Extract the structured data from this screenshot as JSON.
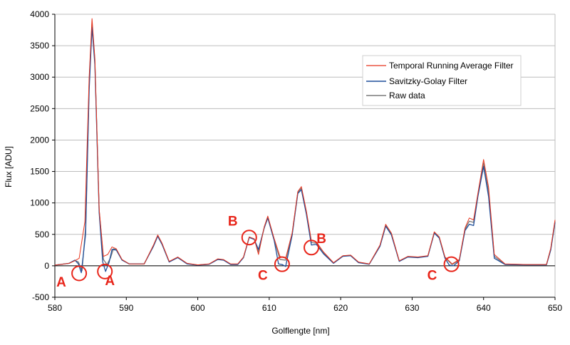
{
  "chart_data": {
    "type": "line",
    "title": "",
    "xlabel": "Golflengte [nm]",
    "ylabel": "Flux [ADU]",
    "xlim": [
      580,
      650
    ],
    "ylim": [
      -500,
      4000
    ],
    "xticks": [
      580,
      590,
      600,
      610,
      620,
      630,
      640,
      650
    ],
    "yticks": [
      -500,
      0,
      500,
      1000,
      1500,
      2000,
      2500,
      3000,
      3500,
      4000
    ],
    "xtick_labels": [
      "580",
      "590",
      "600",
      "610",
      "620",
      "630",
      "640",
      "650"
    ],
    "ytick_labels": [
      "-500",
      "0",
      "500",
      "1000",
      "1500",
      "2000",
      "2500",
      "3000",
      "3500",
      "4000"
    ],
    "grid": "horizontal",
    "legend_position": "right",
    "series": [
      {
        "name": "Temporal Running Average Filter",
        "color": "#e8351e",
        "x": [
          580,
          582,
          582.8,
          583.4,
          584.2,
          584.8,
          585.2,
          585.6,
          586.2,
          586.8,
          587.4,
          588,
          588.6,
          589.4,
          590.4,
          592.5,
          593.8,
          594.4,
          595,
          596,
          597.2,
          598.5,
          600,
          601.6,
          602.8,
          603.6,
          604.6,
          605.6,
          606.4,
          607.2,
          607.9,
          608.5,
          609.3,
          609.8,
          610.7,
          611.5,
          612.3,
          613.2,
          614,
          614.5,
          615.2,
          615.9,
          616.6,
          617.6,
          619,
          620.3,
          621.4,
          622.5,
          624,
          625.5,
          626.3,
          627.1,
          628.2,
          629.4,
          630.8,
          632.2,
          633.1,
          633.8,
          634.6,
          635.6,
          636.6,
          637.4,
          638,
          638.6,
          639.2,
          640,
          640.7,
          641.5,
          643,
          646,
          648.8,
          649.4,
          650
        ],
        "y": [
          10,
          40,
          80,
          120,
          700,
          3000,
          3930,
          3300,
          900,
          150,
          180,
          300,
          270,
          100,
          30,
          30,
          330,
          490,
          360,
          70,
          140,
          40,
          15,
          30,
          110,
          100,
          30,
          30,
          140,
          460,
          430,
          180,
          620,
          790,
          430,
          150,
          120,
          520,
          1180,
          1260,
          870,
          400,
          380,
          220,
          50,
          160,
          170,
          60,
          30,
          330,
          660,
          520,
          80,
          150,
          140,
          160,
          540,
          460,
          140,
          30,
          100,
          600,
          760,
          730,
          1150,
          1690,
          1250,
          180,
          30,
          20,
          20,
          280,
          730
        ]
      },
      {
        "name": "Savitzky-Golay Filter",
        "color": "#1f4f9a",
        "x": [
          580,
          582,
          582.8,
          583.3,
          583.7,
          584.3,
          584.8,
          585.2,
          585.6,
          586.2,
          586.7,
          587.1,
          587.6,
          588,
          588.6,
          589.4,
          590.4,
          592.5,
          593.8,
          594.4,
          595,
          596,
          597.2,
          598.5,
          600,
          601.6,
          602.8,
          603.6,
          604.6,
          605.6,
          606.4,
          607.2,
          607.9,
          608.5,
          609.3,
          609.8,
          610.7,
          611.3,
          611.8,
          612.3,
          613.2,
          614,
          614.5,
          615.2,
          615.9,
          616.6,
          617.6,
          619,
          620.3,
          621.4,
          622.5,
          624,
          625.5,
          626.3,
          627.1,
          628.2,
          629.4,
          630.8,
          632.2,
          633.1,
          633.8,
          634.6,
          635.2,
          635.8,
          636.6,
          637.4,
          638,
          638.6,
          639.2,
          640,
          640.7,
          641.5,
          643,
          646,
          648.8,
          649.4,
          650
        ],
        "y": [
          10,
          40,
          90,
          30,
          -110,
          500,
          2800,
          3790,
          3200,
          850,
          60,
          -90,
          60,
          260,
          250,
          90,
          30,
          30,
          310,
          470,
          340,
          60,
          130,
          30,
          10,
          25,
          100,
          90,
          20,
          20,
          130,
          450,
          420,
          260,
          600,
          760,
          400,
          30,
          20,
          -10,
          480,
          1150,
          1210,
          820,
          330,
          340,
          190,
          40,
          150,
          160,
          50,
          25,
          310,
          630,
          490,
          70,
          140,
          130,
          150,
          520,
          440,
          120,
          10,
          0,
          80,
          560,
          660,
          640,
          1100,
          1580,
          1100,
          120,
          20,
          15,
          15,
          250,
          690
        ]
      },
      {
        "name": "Raw data",
        "color": "#7a7a7a",
        "x": [
          580,
          582,
          582.8,
          583.3,
          583.8,
          584.3,
          584.8,
          585.2,
          585.6,
          586.2,
          586.8,
          587.3,
          587.8,
          588.2,
          588.6,
          589.4,
          590.4,
          592.5,
          593.8,
          594.4,
          595,
          596,
          597.2,
          598.5,
          600,
          601.6,
          602.8,
          603.6,
          604.6,
          605.6,
          606.4,
          607.2,
          607.9,
          608.5,
          609.3,
          609.8,
          610.7,
          611.5,
          612.3,
          613.2,
          614,
          614.5,
          615.2,
          615.9,
          616.6,
          617.6,
          619,
          620.3,
          621.4,
          622.5,
          624,
          625.5,
          626.3,
          627.1,
          628.2,
          629.4,
          630.8,
          632.2,
          633.1,
          633.8,
          634.6,
          635.6,
          636.6,
          637.4,
          638,
          638.6,
          639.2,
          640,
          640.7,
          641.5,
          643,
          646,
          648.8,
          649.4,
          650
        ],
        "y": [
          10,
          40,
          85,
          60,
          -80,
          600,
          2900,
          3860,
          3250,
          880,
          100,
          20,
          130,
          270,
          260,
          95,
          30,
          30,
          320,
          480,
          350,
          65,
          135,
          35,
          12,
          28,
          105,
          95,
          25,
          25,
          135,
          455,
          425,
          220,
          610,
          775,
          415,
          100,
          90,
          500,
          1165,
          1235,
          845,
          370,
          360,
          205,
          45,
          155,
          165,
          55,
          28,
          320,
          645,
          505,
          75,
          145,
          135,
          155,
          530,
          450,
          130,
          20,
          90,
          580,
          710,
          690,
          1125,
          1635,
          1175,
          150,
          25,
          18,
          18,
          265,
          710
        ]
      }
    ],
    "annotations": {
      "color": "#e8251a",
      "circles": [
        {
          "x": 583.4,
          "y": -120
        },
        {
          "x": 587.0,
          "y": -90
        },
        {
          "x": 607.2,
          "y": 450
        },
        {
          "x": 611.8,
          "y": 25
        },
        {
          "x": 615.9,
          "y": 290
        },
        {
          "x": 635.5,
          "y": 25
        }
      ],
      "labels": [
        {
          "text": "A",
          "x": 580.9,
          "y": -330
        },
        {
          "text": "A",
          "x": 587.7,
          "y": -310
        },
        {
          "text": "B",
          "x": 604.9,
          "y": 640
        },
        {
          "text": "C",
          "x": 609.1,
          "y": -220
        },
        {
          "text": "B",
          "x": 617.3,
          "y": 360
        },
        {
          "text": "C",
          "x": 632.8,
          "y": -220
        }
      ]
    }
  }
}
